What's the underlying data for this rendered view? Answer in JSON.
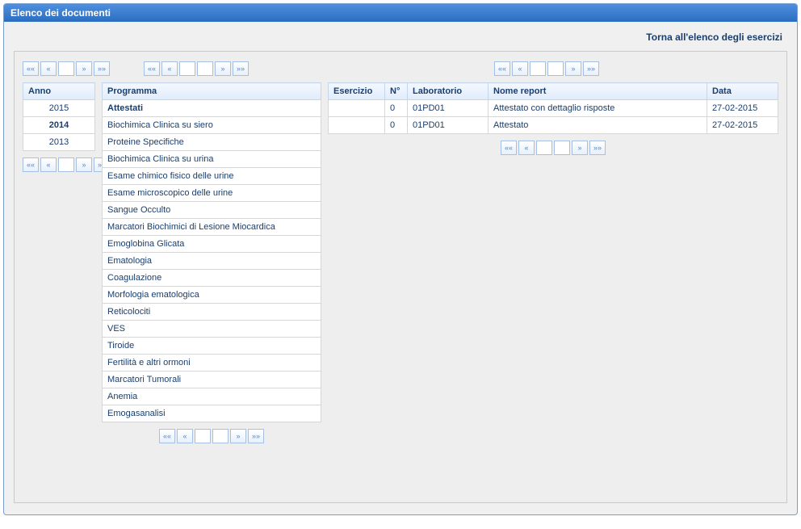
{
  "panel": {
    "title": "Elenco dei documenti"
  },
  "top_link": "Torna all'elenco degli esercizi",
  "pager_glyphs": {
    "first": "««",
    "prev": "«",
    "next": "»",
    "last": "»»"
  },
  "anno": {
    "header": "Anno",
    "years": [
      "2015",
      "2014",
      "2013"
    ],
    "selected_index": 1
  },
  "programma": {
    "header": "Programma",
    "items": [
      "Attestati",
      "Biochimica Clinica su siero",
      "Proteine Specifiche",
      "Biochimica Clinica su urina",
      "Esame chimico fisico delle urine",
      "Esame microscopico delle urine",
      "Sangue Occulto",
      "Marcatori Biochimici di Lesione Miocardica",
      "Emoglobina Glicata",
      "Ematologia",
      "Coagulazione",
      "Morfologia ematologica",
      "Reticolociti",
      "VES",
      "Tiroide",
      "Fertilità e altri ormoni",
      "Marcatori Tumorali",
      "Anemia",
      "Emogasanalisi"
    ],
    "selected_index": 0
  },
  "reports": {
    "columns": [
      "Esercizio",
      "N°",
      "Laboratorio",
      "Nome report",
      "Data"
    ],
    "col_widths": [
      "70px",
      "28px",
      "100px",
      "auto",
      "88px"
    ],
    "rows": [
      {
        "esercizio": "",
        "n": "0",
        "lab": "01PD01",
        "nome": "Attestato con dettaglio risposte",
        "data": "27-02-2015"
      },
      {
        "esercizio": "",
        "n": "0",
        "lab": "01PD01",
        "nome": "Attestato",
        "data": "27-02-2015"
      }
    ]
  },
  "colors": {
    "header_grad_top": "#4f8fde",
    "header_grad_bottom": "#2b6dc0",
    "panel_border": "#7a9fcf",
    "body_bg": "#f0f0f0",
    "box_bg": "#eeeeee",
    "box_border": "#c9c9c9",
    "th_border": "#c3d6ee",
    "td_border": "#d6d6d6",
    "link_text": "#1a3e6e",
    "pager_border": "#a5c0e5"
  }
}
